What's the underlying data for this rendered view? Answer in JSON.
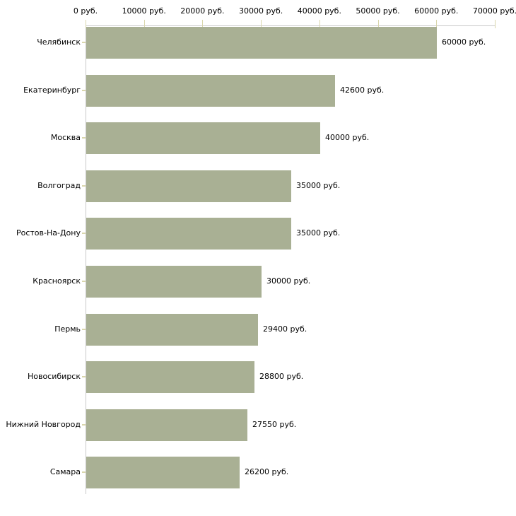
{
  "chart_data": {
    "type": "bar",
    "orientation": "horizontal",
    "title": "",
    "xlabel": "",
    "ylabel": "",
    "unit": "руб.",
    "xlim": [
      0,
      70000
    ],
    "x_ticks": [
      0,
      10000,
      20000,
      30000,
      40000,
      50000,
      60000,
      70000
    ],
    "x_tick_labels": [
      "0 руб.",
      "10000 руб.",
      "20000 руб.",
      "30000 руб.",
      "40000 руб.",
      "50000 руб.",
      "60000 руб.",
      "70000 руб."
    ],
    "categories": [
      "Челябинск",
      "Екатеринбург",
      "Москва",
      "Волгоград",
      "Ростов-На-Дону",
      "Красноярск",
      "Пермь",
      "Новосибирск",
      "Нижний Новгород",
      "Самара"
    ],
    "values": [
      60000,
      42600,
      40000,
      35000,
      35000,
      30000,
      29400,
      28800,
      27550,
      26200
    ],
    "value_labels": [
      "60000 руб.",
      "42600 руб.",
      "40000 руб.",
      "35000 руб.",
      "35000 руб.",
      "30000 руб.",
      "29400 руб.",
      "28800 руб.",
      "27550 руб.",
      "26200 руб."
    ],
    "grid": false,
    "legend": null,
    "colors": {
      "bar_fill": "#a9b094",
      "axis_line": "#c9c9c9",
      "tick_mark": "#d9d6ac",
      "text": "#000000",
      "background": "#ffffff"
    }
  }
}
